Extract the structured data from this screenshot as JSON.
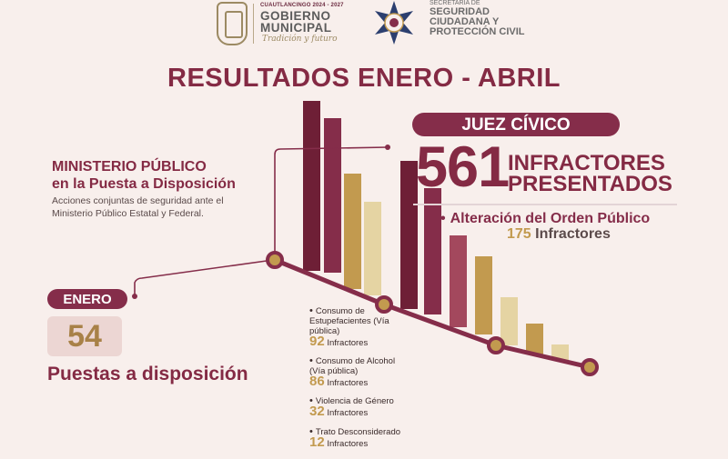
{
  "header": {
    "gov_small": "CUAUTLANCINGO 2024 - 2027",
    "gov_title": "GOBIERNO MUNICIPAL",
    "gov_tagline": "Tradición y futuro",
    "sec_small": "SECRETARÍA DE",
    "sec_title": "SEGURIDAD CIUDADANA Y PROTECCIÓN CIVIL"
  },
  "title": "RESULTADOS ENERO - ABRIL",
  "juez": {
    "label": "JUEZ CÍVICO",
    "number": "561",
    "number_label": "INFRACTORES PRESENTADOS",
    "main_item": "Alteración del Orden Público",
    "main_count": "175",
    "main_unit": "Infractores"
  },
  "ministerio": {
    "title_line1": "MINISTERIO PÚBLICO",
    "title_line2": "en la Puesta a Disposición",
    "desc": "Acciones conjuntas de seguridad ante el Ministerio Público Estatal y Federal."
  },
  "enero": {
    "label": "ENERO",
    "number": "54",
    "caption": "Puestas a disposición"
  },
  "categories": [
    {
      "label": "Consumo de Estupefacientes (Vía pública)",
      "count": "92",
      "unit": "Infractores"
    },
    {
      "label": "Consumo de Alcohol (Vía pública)",
      "count": "86",
      "unit": "Infractores"
    },
    {
      "label": "Violencia de Género",
      "count": "32",
      "unit": "Infractores"
    },
    {
      "label": "Trato Desconsiderado",
      "count": "12",
      "unit": "Infractores"
    }
  ],
  "bar_levels": [
    0.78,
    0.71,
    0.53,
    0.43,
    0.68,
    0.58,
    0.42,
    0.36,
    0.22,
    0.14,
    0.07
  ],
  "colors": {
    "primary": "#852d4a",
    "dark": "#6e1f36",
    "mid": "#a3485d",
    "gold": "#c29a4f",
    "pale": "#e5d4a3"
  }
}
